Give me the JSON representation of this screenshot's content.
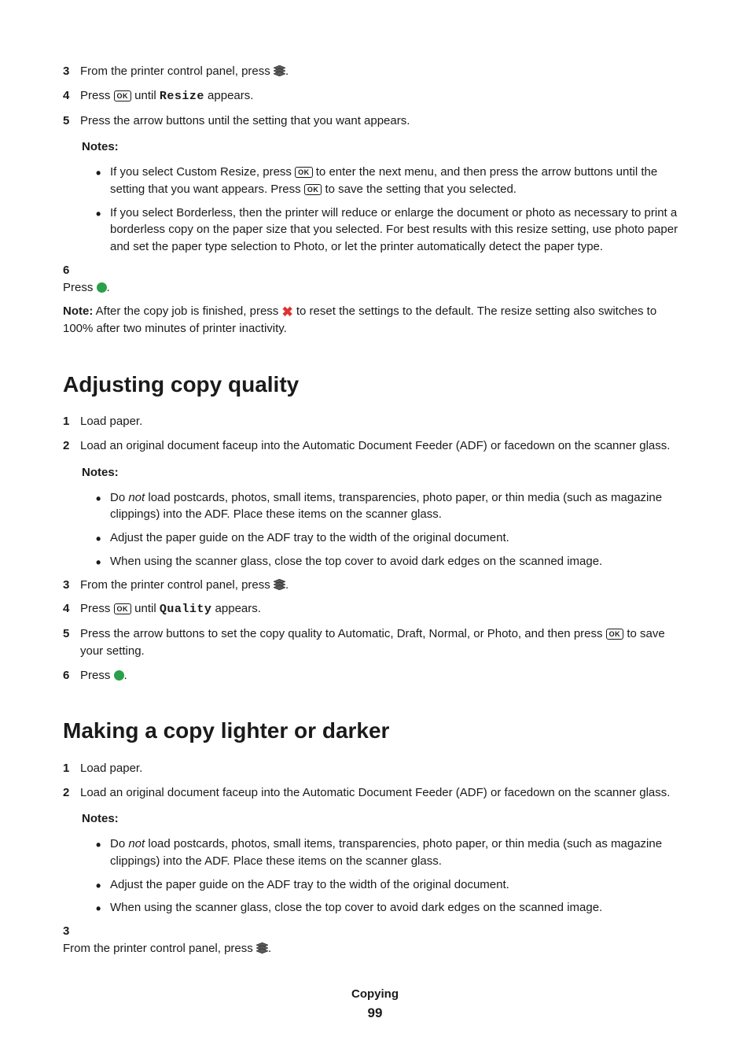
{
  "colors": {
    "text": "#1a1a1a",
    "green": "#2aa04a",
    "red": "#e0322f",
    "layers_fill": "#5a5a5a",
    "layers_stroke": "#222222"
  },
  "top_steps": [
    {
      "num": "3",
      "before": "From the printer control panel, press ",
      "icon": "layers",
      "after": "."
    },
    {
      "num": "4",
      "before": "Press ",
      "icon": "ok",
      "mid": " until ",
      "mono": "Resize",
      "after": " appears."
    },
    {
      "num": "5",
      "before": "Press the arrow buttons until the setting that you want appears."
    }
  ],
  "top_notes_heading": "Notes:",
  "top_notes": [
    {
      "pre": "If you select Custom Resize, press ",
      "icon1": "ok",
      "mid": " to enter the next menu, and then press the arrow buttons until the setting that you want appears. Press ",
      "icon2": "ok",
      "post": " to save the setting that you selected."
    },
    {
      "pre": "If you select Borderless, then the printer will reduce or enlarge the document or photo as necessary to print a borderless copy on the paper size that you selected. For best results with this resize setting, use photo paper and set the paper type selection to Photo, or let the printer automatically detect the paper type."
    }
  ],
  "top_step6": {
    "num": "6",
    "before": "Press ",
    "icon": "green-circle",
    "after": "."
  },
  "top_note_para": {
    "bold": "Note:",
    "pre": " After the copy job is finished, press ",
    "icon": "red-x",
    "post": " to reset the settings to the default. The resize setting also switches to 100% after two minutes of printer inactivity."
  },
  "section_a_title": "Adjusting copy quality",
  "section_a_steps_1_2": [
    {
      "num": "1",
      "text": "Load paper."
    },
    {
      "num": "2",
      "text": "Load an original document faceup into the Automatic Document Feeder (ADF) or facedown on the scanner glass."
    }
  ],
  "section_a_notes_heading": "Notes:",
  "section_a_notes": [
    {
      "pre": "Do ",
      "italic": "not",
      "post": " load postcards, photos, small items, transparencies, photo paper, or thin media (such as magazine clippings) into the ADF. Place these items on the scanner glass."
    },
    {
      "pre": "Adjust the paper guide on the ADF tray to the width of the original document."
    },
    {
      "pre": "When using the scanner glass, close the top cover to avoid dark edges on the scanned image."
    }
  ],
  "section_a_steps_rest": [
    {
      "num": "3",
      "before": "From the printer control panel, press ",
      "icon": "layers",
      "after": "."
    },
    {
      "num": "4",
      "before": "Press ",
      "icon": "ok",
      "mid": " until ",
      "mono": "Quality",
      "after": " appears."
    },
    {
      "num": "5",
      "before": "Press the arrow buttons to set the copy quality to Automatic, Draft, Normal, or Photo, and then press ",
      "icon": "ok",
      "after": " to save your setting."
    },
    {
      "num": "6",
      "before": "Press ",
      "icon": "green-circle",
      "after": "."
    }
  ],
  "section_b_title": "Making a copy lighter or darker",
  "section_b_steps_1_2": [
    {
      "num": "1",
      "text": "Load paper."
    },
    {
      "num": "2",
      "text": "Load an original document faceup into the Automatic Document Feeder (ADF) or facedown on the scanner glass."
    }
  ],
  "section_b_notes_heading": "Notes:",
  "section_b_notes": [
    {
      "pre": "Do ",
      "italic": "not",
      "post": " load postcards, photos, small items, transparencies, photo paper, or thin media (such as magazine clippings) into the ADF. Place these items on the scanner glass."
    },
    {
      "pre": "Adjust the paper guide on the ADF tray to the width of the original document."
    },
    {
      "pre": "When using the scanner glass, close the top cover to avoid dark edges on the scanned image."
    }
  ],
  "section_b_step3": {
    "num": "3",
    "before": "From the printer control panel, press ",
    "icon": "layers",
    "after": "."
  },
  "footer_section": "Copying",
  "footer_page": "99"
}
